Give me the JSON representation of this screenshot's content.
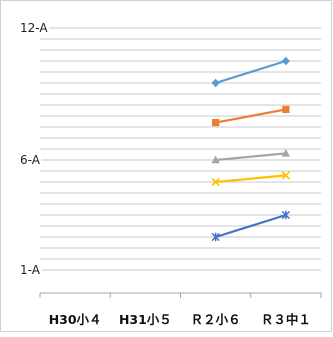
{
  "chart_data": {
    "type": "line",
    "title": "",
    "xlabel": "",
    "ylabel": "",
    "categories": [
      "H30小４",
      "H31小５",
      "Ｒ２小６",
      "Ｒ３中１"
    ],
    "y_tick_labels": [
      {
        "value": 1,
        "label": "1-A"
      },
      {
        "value": 6,
        "label": "6-A"
      },
      {
        "value": 12,
        "label": "12-A"
      }
    ],
    "ylim": [
      1,
      12
    ],
    "gridline_step": 0.5,
    "grid": true,
    "legend": "none",
    "series": [
      {
        "color": "#5B9BD5",
        "marker": "diamond",
        "values": [
          null,
          null,
          9.5,
          10.5
        ]
      },
      {
        "color": "#ED7D31",
        "marker": "square",
        "values": [
          null,
          null,
          7.7,
          8.3
        ]
      },
      {
        "color": "#A5A5A5",
        "marker": "triangle",
        "values": [
          null,
          null,
          6.0,
          6.3
        ]
      },
      {
        "color": "#FFC000",
        "marker": "x",
        "values": [
          null,
          null,
          5.0,
          5.3
        ]
      },
      {
        "color": "#4472C4",
        "marker": "star",
        "values": [
          null,
          null,
          2.5,
          3.5
        ]
      }
    ]
  }
}
